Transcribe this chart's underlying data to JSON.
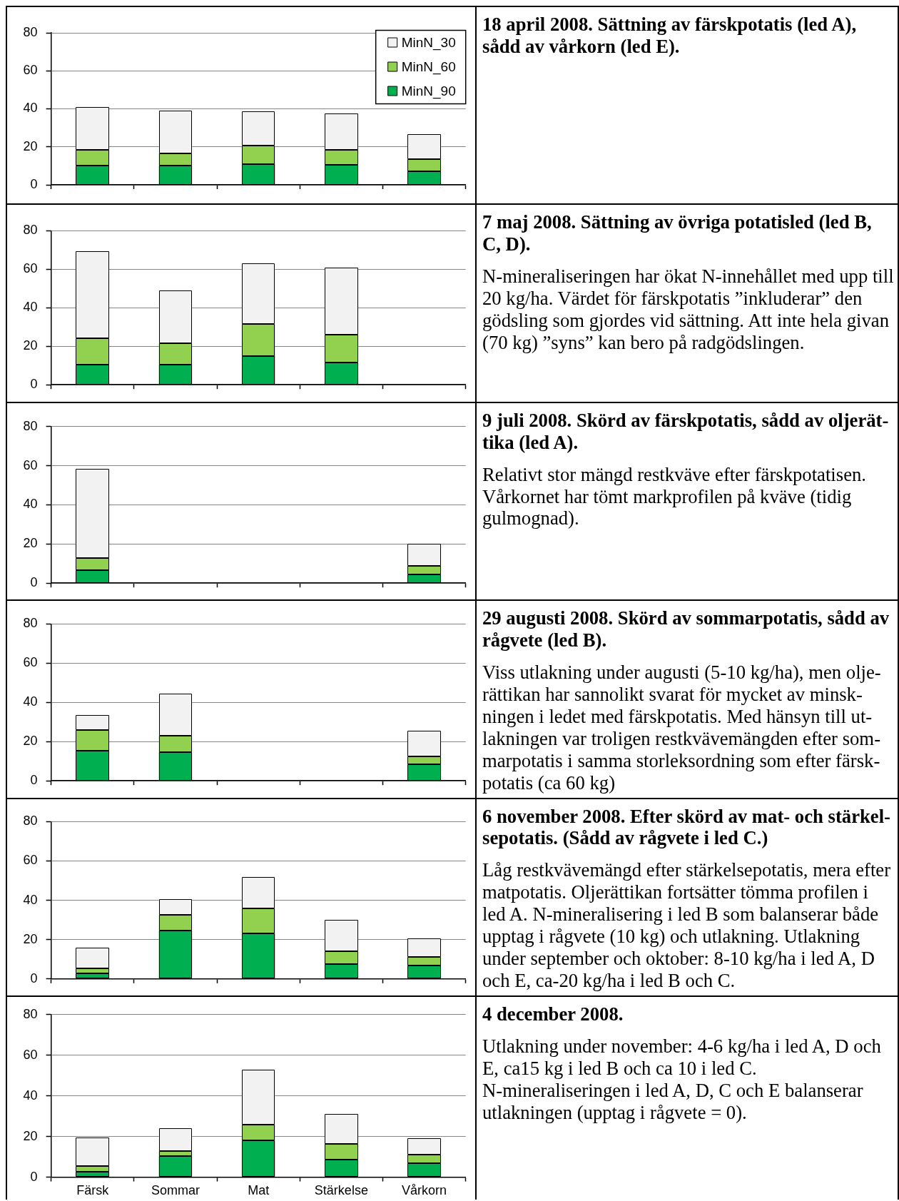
{
  "chart_data": [
    {
      "type": "bar",
      "annotations": [
        "18 april 2008. Sättning av färskpotatis (led A),\nsådd av vårkorn (led E)."
      ],
      "categories": [
        null,
        null,
        null,
        null,
        null
      ],
      "stacked": true,
      "series": [
        {
          "name": "MinN_90",
          "color": "#00b050",
          "values": [
            10,
            10,
            11,
            10.5,
            7
          ]
        },
        {
          "name": "MinN_60",
          "color": "#92d050",
          "values": [
            8.5,
            6.5,
            9.5,
            8,
            6.5
          ]
        },
        {
          "name": "MinN_30",
          "color": "#f2f2f2",
          "values": [
            22.5,
            22.5,
            18,
            19,
            13
          ]
        }
      ],
      "ylim": [
        0,
        80
      ],
      "yticks": [
        0,
        20,
        40,
        60,
        80
      ],
      "grid": "y",
      "legend": "top right"
    },
    {
      "type": "bar",
      "annotations": [
        "7 maj 2008. Sättning av övriga potatisled (led B,\nC, D).",
        "N-mineraliseringen har ökat N-innehållet med upp till\n20 kg/ha. Värdet för färskpotatis ”inkluderar” den\ngödsling som gjordes vid sättning. Att inte hela givan\n(70 kg) ”syns” kan bero på radgödslingen."
      ],
      "categories": [
        null,
        null,
        null,
        null,
        null
      ],
      "stacked": true,
      "series": [
        {
          "color": "#00b050",
          "values": [
            10.5,
            10.5,
            15,
            11.5,
            null
          ]
        },
        {
          "color": "#92d050",
          "values": [
            13.5,
            11,
            16.5,
            14.5,
            null
          ]
        },
        {
          "color": "#f2f2f2",
          "values": [
            45.5,
            27.5,
            31.5,
            35,
            null
          ]
        }
      ],
      "ylim": [
        0,
        80
      ],
      "yticks": [
        0,
        20,
        40,
        60,
        80
      ],
      "grid": "y"
    },
    {
      "type": "bar",
      "annotations": [
        "9 juli 2008. Skörd av färskpotatis, sådd av oljerät-\ntika (led A).",
        "Relativt stor mängd restkväve efter färskpotatisen.\nVårkornet har tömt markprofilen på kväve (tidig\ngulmognad)."
      ],
      "categories": [
        null,
        null,
        null,
        null,
        null
      ],
      "stacked": true,
      "series": [
        {
          "color": "#00b050",
          "values": [
            6.5,
            null,
            null,
            null,
            4.5
          ]
        },
        {
          "color": "#92d050",
          "values": [
            6.5,
            null,
            null,
            null,
            4.5
          ]
        },
        {
          "color": "#f2f2f2",
          "values": [
            45.5,
            null,
            null,
            null,
            11
          ]
        }
      ],
      "ylim": [
        0,
        80
      ],
      "yticks": [
        0,
        20,
        40,
        60,
        80
      ],
      "grid": "y"
    },
    {
      "type": "bar",
      "annotations": [
        "29 augusti 2008. Skörd av sommarpotatis, sådd av\nrågvete (led B).",
        "Viss utlakning under augusti (5-10 kg/ha), men olje-\nrättikan har sannolikt svarat för mycket av minsk-\nningen i ledet med färskpotatis. Med hänsyn till ut-\nlakningen var troligen restkvävemängden efter som-\nmarpotatis i samma storleksordning som efter färsk-\npotatis (ca 60 kg)"
      ],
      "categories": [
        null,
        null,
        null,
        null,
        null
      ],
      "stacked": true,
      "series": [
        {
          "color": "#00b050",
          "values": [
            15.5,
            14.5,
            null,
            null,
            8.5
          ]
        },
        {
          "color": "#92d050",
          "values": [
            10.5,
            8.5,
            null,
            null,
            4
          ]
        },
        {
          "color": "#f2f2f2",
          "values": [
            7.5,
            21.5,
            null,
            null,
            13
          ]
        }
      ],
      "ylim": [
        0,
        80
      ],
      "yticks": [
        0,
        20,
        40,
        60,
        80
      ],
      "grid": "y"
    },
    {
      "type": "bar",
      "annotations": [
        "6 november 2008. Efter skörd av mat- och stärkel-\nsepotatis. (Sådd av rågvete i led C.)",
        "Låg restkvävemängd efter stärkelsepotatis, mera efter\nmatpotatis. Oljerättikan fortsätter tömma profilen i\nled A. N-mineralisering i led B som balanserar både\nupptag i rågvete (10 kg) och utlakning. Utlakning\nunder september och oktober: 8-10 kg/ha i led A, D\noch E, ca-20 kg/ha i led B och C."
      ],
      "categories": [
        null,
        null,
        null,
        null,
        null
      ],
      "stacked": true,
      "series": [
        {
          "color": "#00b050",
          "values": [
            3,
            24.5,
            23,
            7.5,
            7
          ]
        },
        {
          "color": "#92d050",
          "values": [
            2.5,
            8,
            13,
            6.5,
            4
          ]
        },
        {
          "color": "#f2f2f2",
          "values": [
            10.5,
            8,
            16,
            16,
            9.5
          ]
        }
      ],
      "ylim": [
        0,
        80
      ],
      "yticks": [
        0,
        20,
        40,
        60,
        80
      ],
      "grid": "y"
    },
    {
      "type": "bar",
      "annotations": [
        "4 december 2008.",
        "Utlakning under november: 4-6 kg/ha i led A, D och\nE, ca15 kg i led B och ca 10 i led C.\nN-mineraliseringen i led A, D, C och E balanserar\nutlakningen (upptag i rågvete = 0)."
      ],
      "categories": [
        "Färsk",
        "Sommar",
        "Mat",
        "Stärkelse",
        "Vårkorn"
      ],
      "stacked": true,
      "series": [
        {
          "color": "#00b050",
          "values": [
            2.5,
            10.5,
            18,
            8.5,
            7
          ]
        },
        {
          "color": "#92d050",
          "values": [
            3,
            2.5,
            8,
            8,
            4
          ]
        },
        {
          "color": "#f2f2f2",
          "values": [
            14,
            11,
            27,
            14.5,
            8
          ]
        }
      ],
      "ylim": [
        0,
        80
      ],
      "yticks": [
        0,
        20,
        40,
        60,
        80
      ],
      "grid": "y"
    }
  ]
}
